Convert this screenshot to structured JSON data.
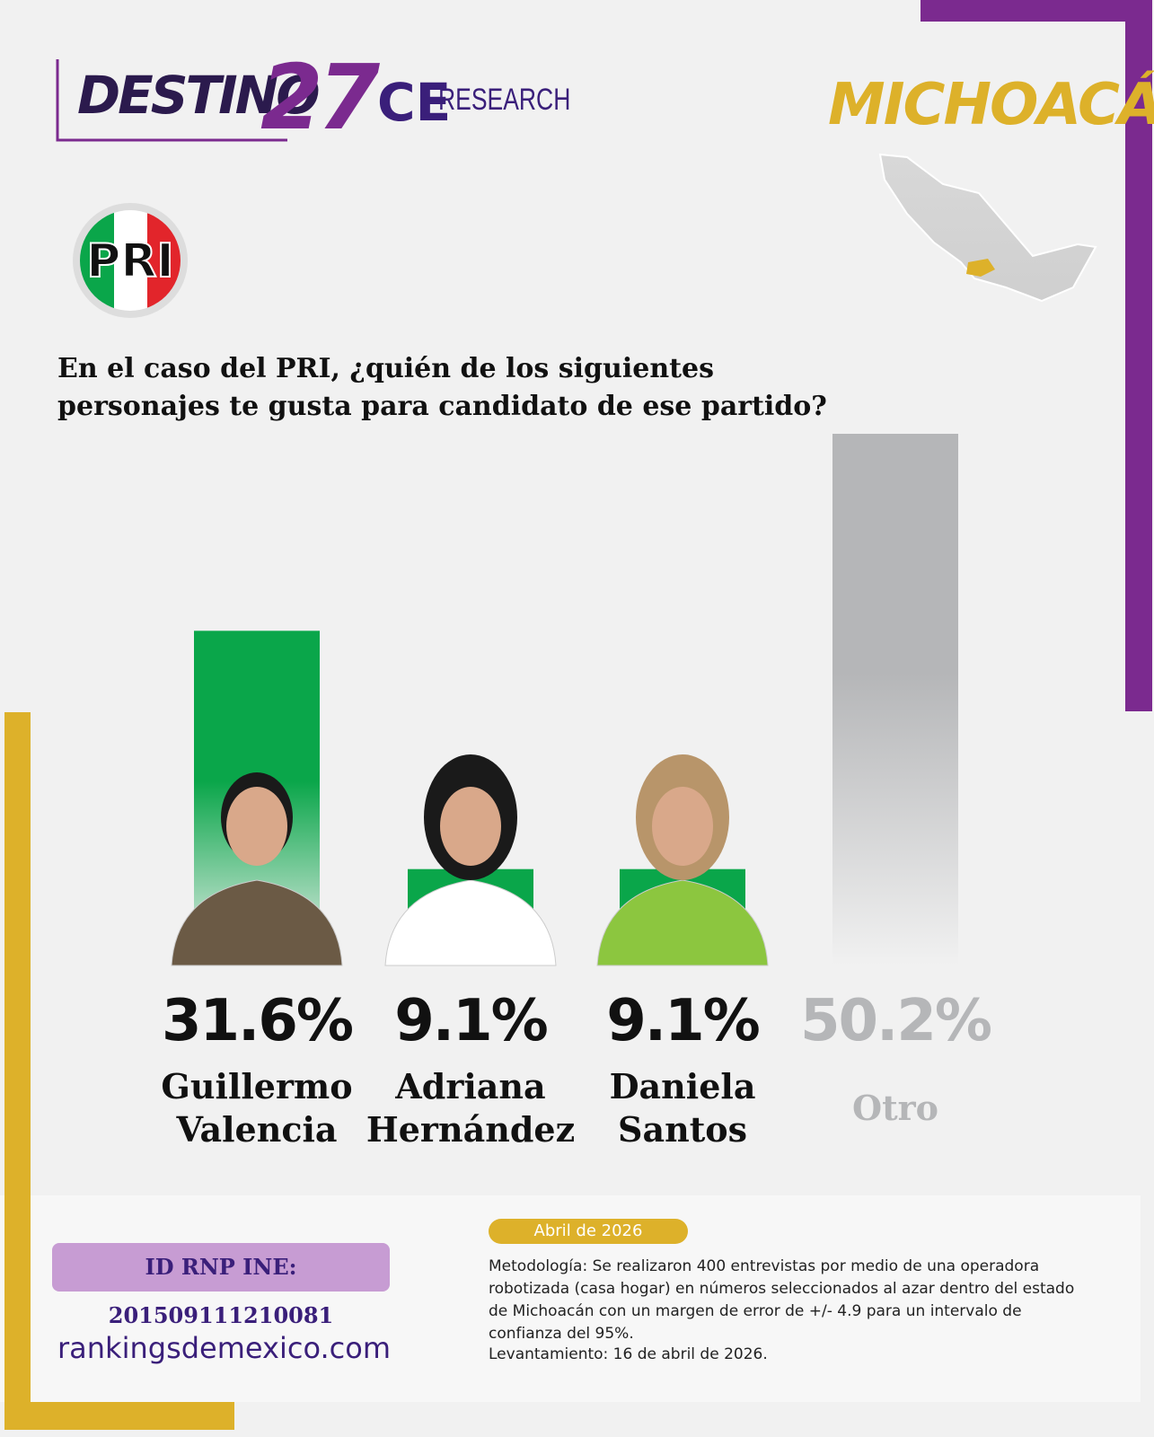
{
  "header": {
    "brand": "DESTINO",
    "brand_number": "27",
    "partner_ce": "CE",
    "partner_research": "RESEARCH",
    "state": "MICHOACÁN",
    "party_logo": "PRI"
  },
  "chart_data": {
    "type": "bar",
    "title": "En el caso del PRI, ¿quién de los siguientes personajes te gusta para candidato de ese partido?",
    "categories": [
      "Guillermo Valencia",
      "Adriana Hernández",
      "Daniela Santos",
      "Otro"
    ],
    "values": [
      31.6,
      9.1,
      9.1,
      50.2
    ],
    "value_labels": [
      "31.6%",
      "9.1%",
      "9.1%",
      "50.2%"
    ],
    "colors": [
      "#0aa64a",
      "#0aa64a",
      "#0aa64a",
      "#b5b6b8"
    ],
    "label_colors": [
      "#111111",
      "#111111",
      "#111111",
      "#b5b6b8"
    ]
  },
  "footer": {
    "id_rnp": "ID RNP INE: 201509111210081",
    "website": "rankingsdemexico.com",
    "date": "Abril de 2026",
    "methodology": "Metodología: Se realizaron 400 entrevistas por medio de una operadora robotizada (casa hogar) en números seleccionados al azar dentro del estado de Michoacán con un margen de error de +/- 4.9 para un intervalo de confianza del 95%.",
    "fieldwork": "Levantamiento: 16 de abril de 2026."
  }
}
